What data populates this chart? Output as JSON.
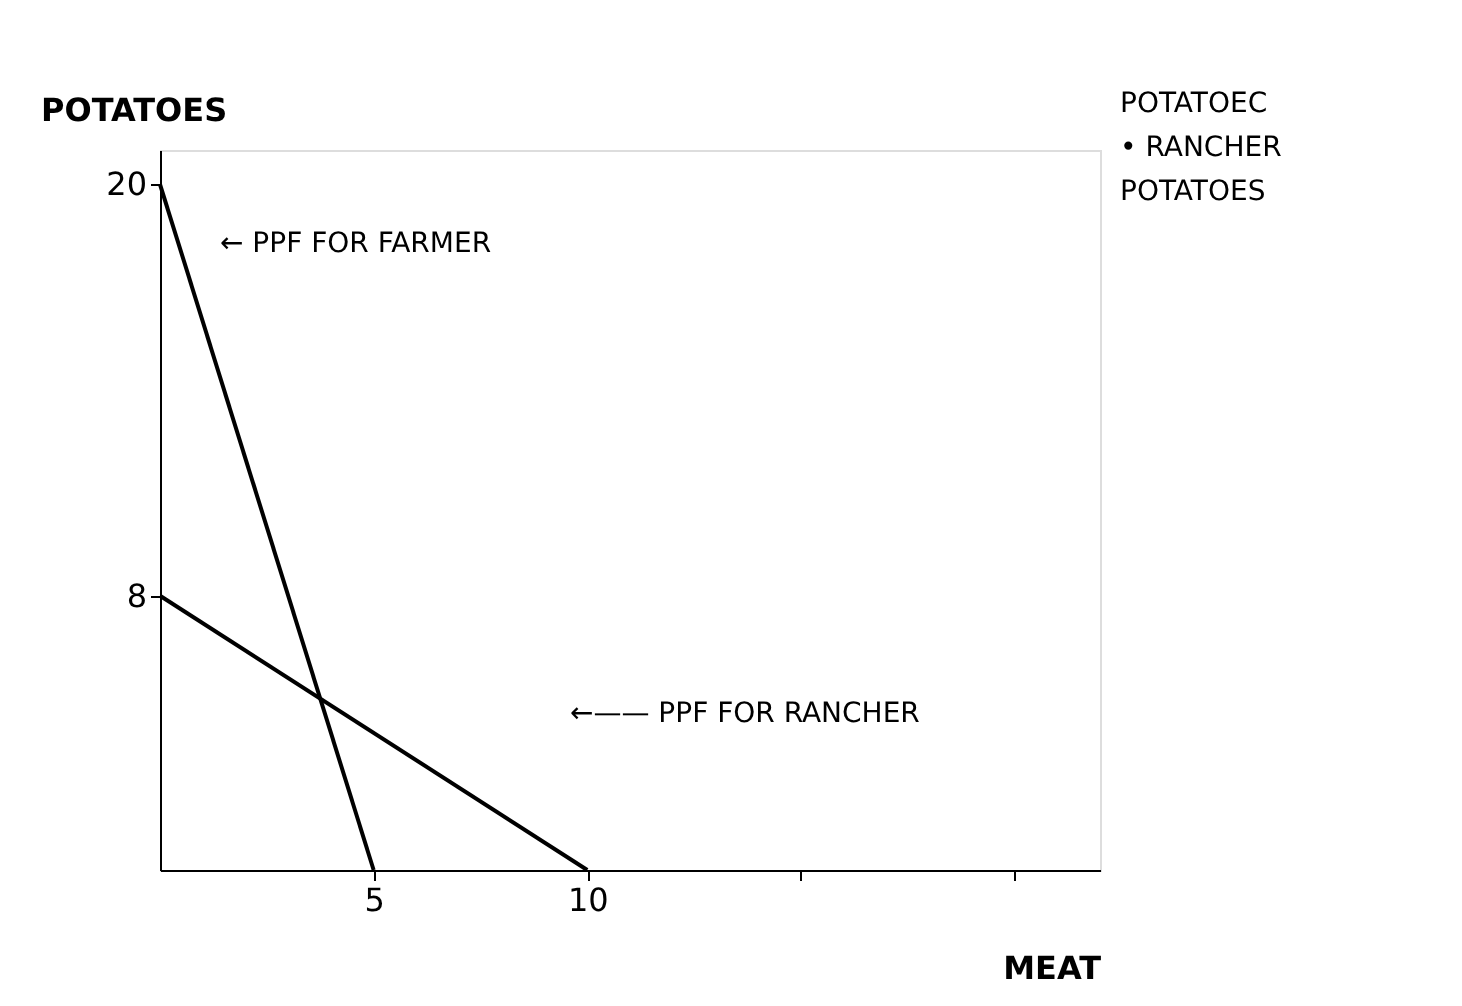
{
  "chart_data": {
    "type": "line",
    "xlabel": "MEAT",
    "ylabel": "POTATOES",
    "series": [
      {
        "color": "#000000",
        "x": [
          0,
          5
        ],
        "values": [
          20,
          0
        ]
      },
      {
        "color": "#000000",
        "x": [
          0,
          10
        ],
        "values": [
          8,
          0
        ]
      }
    ],
    "xlim": [
      0,
      22
    ],
    "ylim": [
      0,
      21
    ],
    "xticks": [
      5,
      10,
      {
        "value": 15,
        "label": null
      },
      {
        "value": 20,
        "label": null
      }
    ],
    "yticks": [
      8,
      20
    ],
    "annotations": [
      "← PPF FOR FARMER",
      "←—— PPF FOR RANCHER",
      "POTATOEC",
      "• RANCHER",
      "POTATOES"
    ],
    "grid": false,
    "marker": "none",
    "line_style": "solid"
  }
}
